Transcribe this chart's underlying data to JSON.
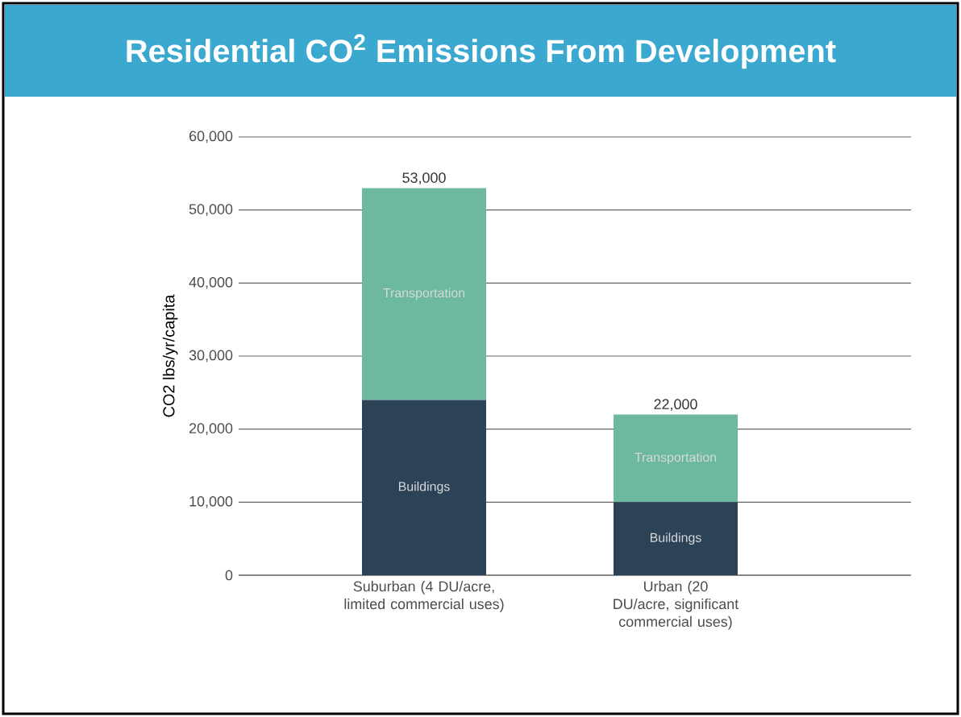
{
  "chart_data": {
    "type": "bar",
    "stacked": true,
    "title": "Residential CO$^{2}$ Emissions From Development",
    "ylabel": "CO2 lbs/yr/capita",
    "categories": [
      "Suburban (4 DU/acre, limited commercial uses)",
      "Urban (20 DU/acre, significant commercial uses)"
    ],
    "series": [
      {
        "name": "Buildings",
        "color": "#2b4257",
        "values": [
          24000,
          10000
        ]
      },
      {
        "name": "Transportation",
        "color": "#6cb9a0",
        "values": [
          29000,
          12000
        ]
      }
    ],
    "totals": [
      "53,000",
      "22,000"
    ],
    "ylim": [
      0,
      60000
    ],
    "yticks": [
      0,
      {
        "value": 10000,
        "label": "10,000"
      },
      {
        "value": 20000,
        "label": "20,000"
      },
      {
        "value": 30000,
        "label": "30,000"
      },
      {
        "value": 40000,
        "label": "40,000"
      },
      {
        "value": 50000,
        "label": "50,000"
      },
      {
        "value": 60000,
        "label": "60,000"
      }
    ],
    "grid": "y"
  }
}
